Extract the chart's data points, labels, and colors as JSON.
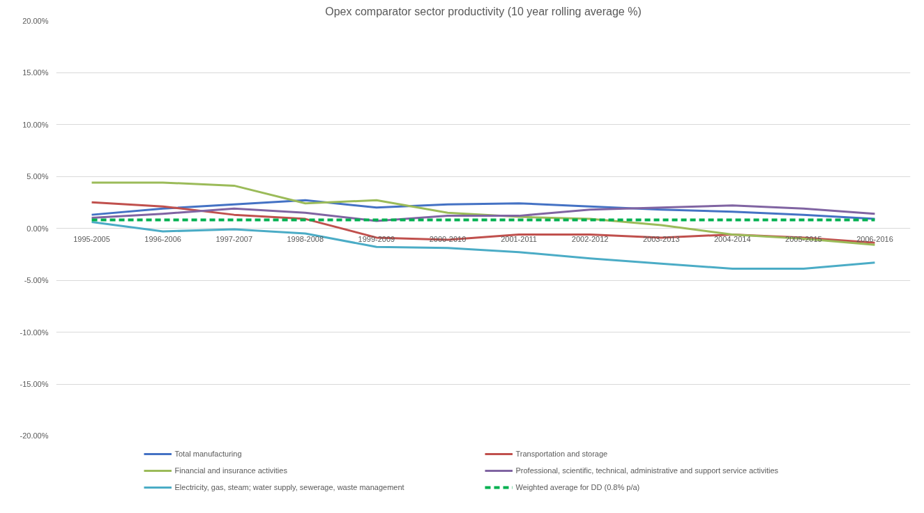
{
  "chart_data": {
    "type": "line",
    "title": "Opex comparator sector productivity (10 year rolling average %)",
    "categories": [
      "1995-2005",
      "1996-2006",
      "1997-2007",
      "1998-2008",
      "1999-2009",
      "2000-2010",
      "2001-2011",
      "2002-2012",
      "2003-2013",
      "2004-2014",
      "2005-2015",
      "2006-2016"
    ],
    "series": [
      {
        "name": "Total manufacturing",
        "color": "#4472c4",
        "values": [
          1.3,
          1.9,
          2.3,
          2.7,
          2.0,
          2.3,
          2.4,
          2.1,
          1.8,
          1.6,
          1.3,
          0.9
        ]
      },
      {
        "name": "Transportation and storage",
        "color": "#c0504d",
        "values": [
          2.5,
          2.1,
          1.3,
          0.9,
          -0.9,
          -1.1,
          -0.6,
          -0.6,
          -0.9,
          -0.6,
          -0.9,
          -1.4
        ]
      },
      {
        "name": "Financial and insurance activities",
        "color": "#9bbb59",
        "values": [
          4.4,
          4.4,
          4.1,
          2.4,
          2.7,
          1.5,
          1.1,
          0.9,
          0.3,
          -0.6,
          -1.0,
          -1.6
        ]
      },
      {
        "name": "Professional, scientific, technical, administrative and support service activities",
        "color": "#8064a2",
        "values": [
          1.0,
          1.4,
          1.9,
          1.5,
          0.7,
          1.2,
          1.2,
          1.8,
          2.0,
          2.2,
          1.9,
          1.4
        ]
      },
      {
        "name": "Electricity, gas, steam; water supply, sewerage, waste management",
        "color": "#4bacc6",
        "values": [
          0.6,
          -0.3,
          -0.1,
          -0.5,
          -1.8,
          -1.9,
          -2.3,
          -2.9,
          -3.4,
          -3.9,
          -3.9,
          -3.3
        ]
      },
      {
        "name": "Weighted average for DD (0.8% p/a)",
        "color": "#00b050",
        "line_style": "dashed",
        "values": [
          0.8,
          0.8,
          0.8,
          0.8,
          0.8,
          0.8,
          0.8,
          0.8,
          0.8,
          0.8,
          0.8,
          0.8
        ]
      }
    ],
    "ylim": [
      -20,
      20
    ],
    "yticks": [
      {
        "value": -20,
        "label": "-20.00%"
      },
      {
        "value": -15,
        "label": "-15.00%"
      },
      {
        "value": -10,
        "label": "-10.00%"
      },
      {
        "value": -5,
        "label": "-5.00%"
      },
      {
        "value": 0,
        "label": "0.00%"
      },
      {
        "value": 5,
        "label": "5.00%"
      },
      {
        "value": 10,
        "label": "10.00%"
      },
      {
        "value": 15,
        "label": "15.00%"
      },
      {
        "value": 20,
        "label": "20.00%"
      }
    ],
    "grid": "y",
    "legend": "bottom",
    "marker": "none"
  }
}
